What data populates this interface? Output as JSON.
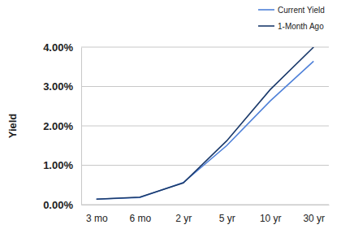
{
  "chart_data": {
    "type": "line",
    "y_label": "Yield",
    "categories": [
      "3 mo",
      "6 mo",
      "2 yr",
      "5 yr",
      "10 yr",
      "30 yr"
    ],
    "series": [
      {
        "name": "Current Yield",
        "color": "#4f81d9",
        "values": [
          0.14,
          0.18,
          0.56,
          1.5,
          2.63,
          3.64
        ]
      },
      {
        "name": "1-Month Ago",
        "color": "#1b3a6b",
        "values": [
          0.14,
          0.19,
          0.55,
          1.62,
          2.92,
          4.0
        ]
      }
    ],
    "ylim": [
      0,
      4
    ],
    "yticks": [
      {
        "value": 0,
        "label": "0.00%"
      },
      {
        "value": 1,
        "label": "1.00%"
      },
      {
        "value": 2,
        "label": "2.00%"
      },
      {
        "value": 3,
        "label": "3.00%"
      },
      {
        "value": 4,
        "label": "4.00%"
      }
    ],
    "grid": true,
    "legend": "top-right"
  }
}
